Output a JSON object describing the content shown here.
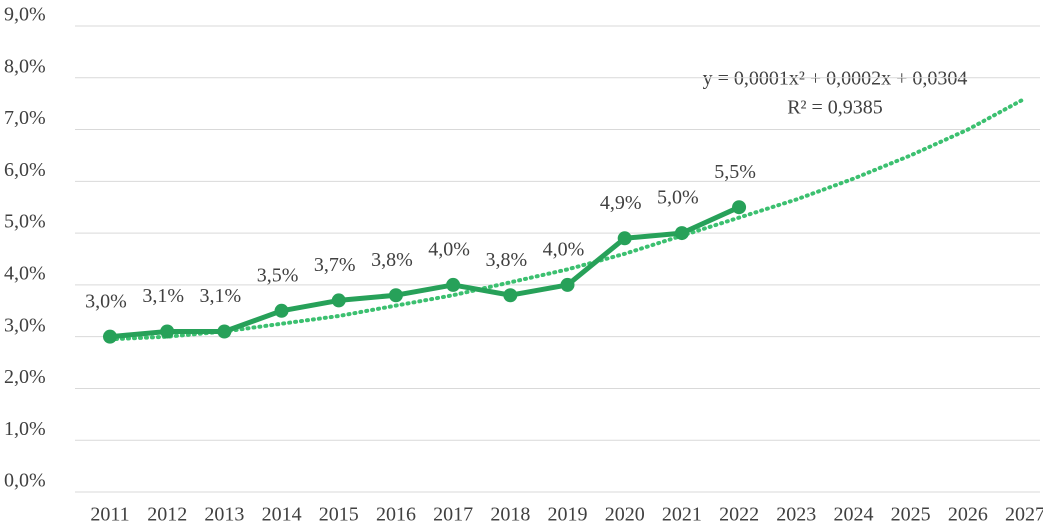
{
  "chart_data": {
    "type": "line",
    "categories": [
      "2011",
      "2012",
      "2013",
      "2014",
      "2015",
      "2016",
      "2017",
      "2018",
      "2019",
      "2020",
      "2021",
      "2022",
      "2023",
      "2024",
      "2025",
      "2026",
      "2027"
    ],
    "series": [
      {
        "color": "#27a159",
        "line_style": "solid",
        "markers": true,
        "values": [
          3.0,
          3.1,
          3.1,
          3.5,
          3.7,
          3.8,
          4.0,
          3.8,
          4.0,
          4.9,
          5.0,
          5.5,
          null,
          null,
          null,
          null,
          null
        ],
        "value_labels": [
          "3,0%",
          "3,1%",
          "3,1%",
          "3,5%",
          "3,7%",
          "3,8%",
          "4,0%",
          "3,8%",
          "4,0%",
          "4,9%",
          "5,0%",
          "5,5%",
          null,
          null,
          null,
          null,
          null
        ]
      },
      {
        "color": "#3cc070",
        "line_style": "dotted",
        "markers": false,
        "values": [
          2.95,
          3.0,
          3.1,
          3.25,
          3.4,
          3.6,
          3.8,
          4.05,
          4.3,
          4.6,
          4.95,
          5.3,
          5.65,
          6.05,
          6.5,
          7.0,
          7.6
        ]
      }
    ],
    "annotations": [
      "y = 0,0001x² + 0,0002x + 0,0304",
      "R² = 0,9385"
    ],
    "ylim": [
      0,
      9
    ],
    "yticks": [
      {
        "value": 0,
        "label": "0,0%"
      },
      {
        "value": 1,
        "label": "1,0%"
      },
      {
        "value": 2,
        "label": "2,0%"
      },
      {
        "value": 3,
        "label": "3,0%"
      },
      {
        "value": 4,
        "label": "4,0%"
      },
      {
        "value": 5,
        "label": "5,0%"
      },
      {
        "value": 6,
        "label": "6,0%"
      },
      {
        "value": 7,
        "label": "7,0%"
      },
      {
        "value": 8,
        "label": "8,0%"
      },
      {
        "value": 9,
        "label": "9,0%"
      }
    ],
    "grid": true
  }
}
